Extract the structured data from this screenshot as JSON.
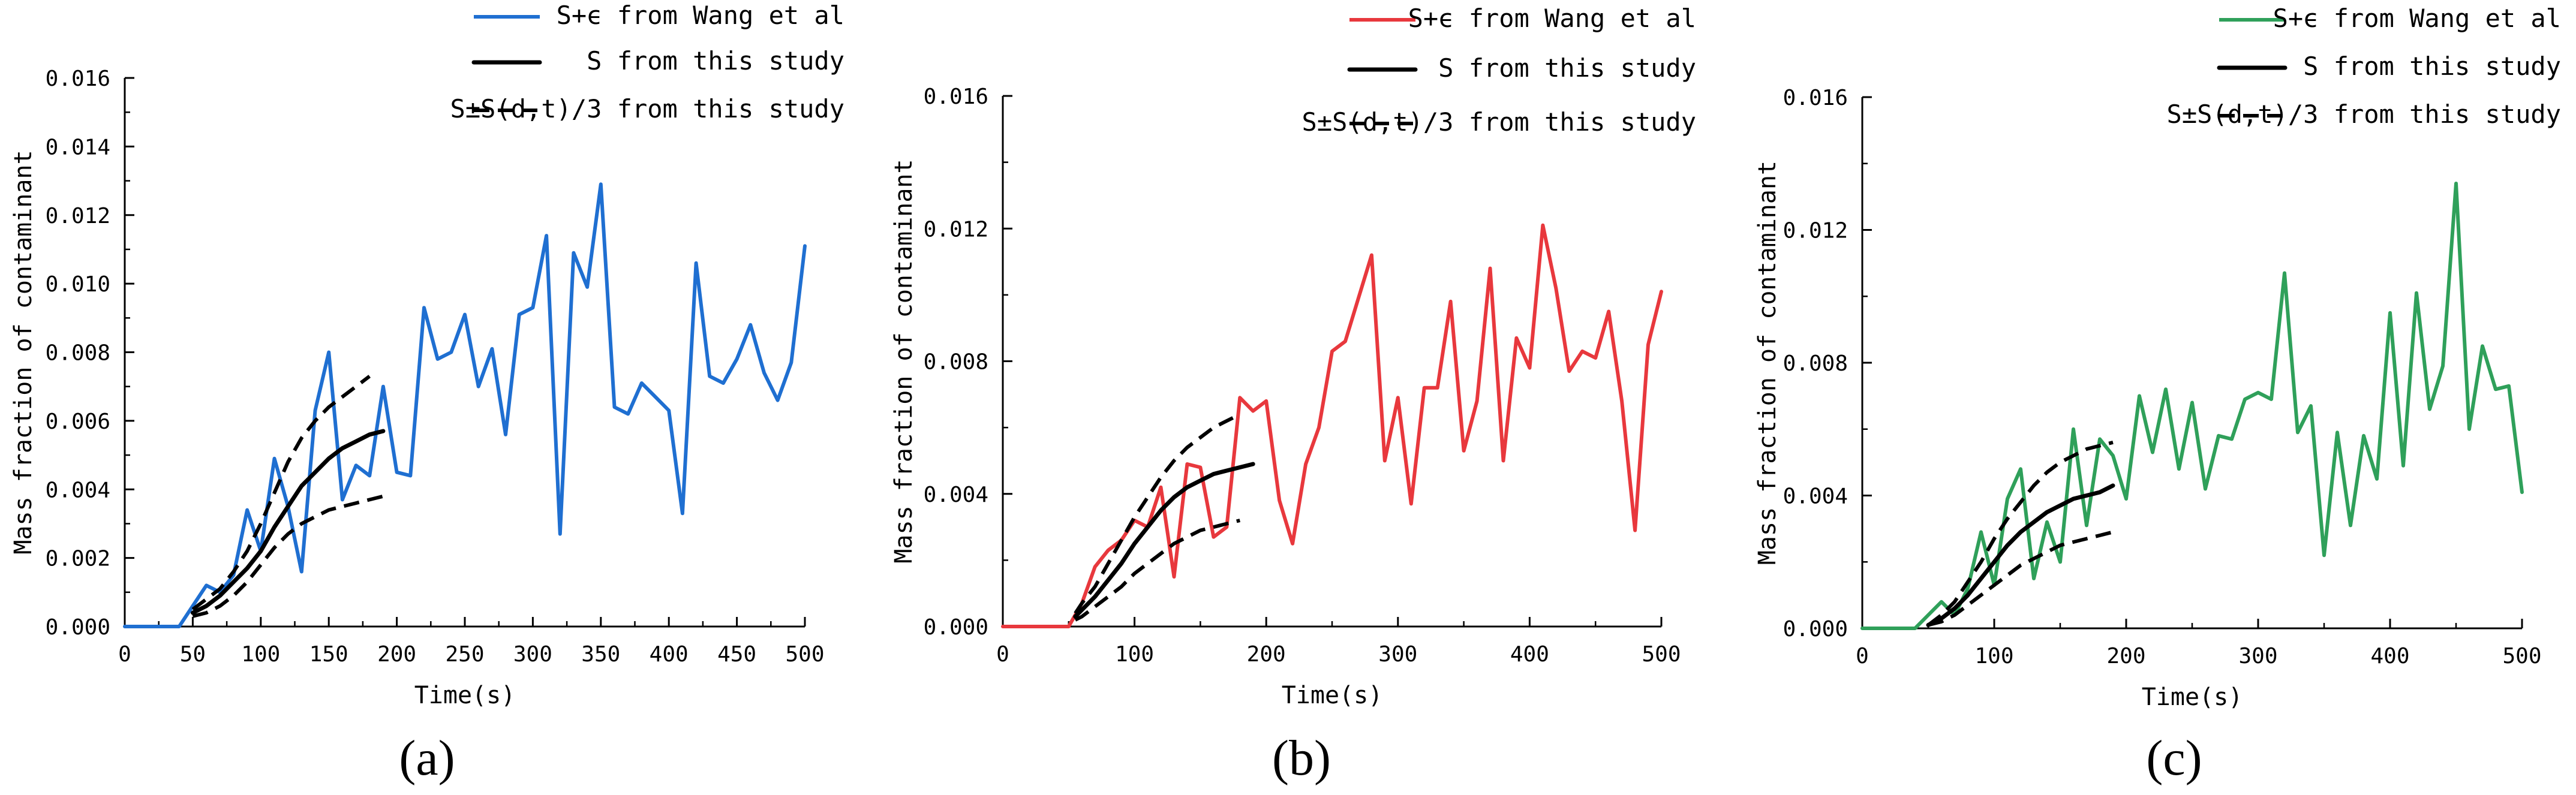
{
  "figure": {
    "panel_labels": [
      "(a)",
      "(b)",
      "(c)"
    ]
  },
  "chart_data": [
    {
      "type": "line",
      "panel": "(a)",
      "xlabel": "Time(s)",
      "ylabel": "Mass fraction of contaminant",
      "xlim": [
        0,
        500
      ],
      "ylim": [
        0,
        0.016
      ],
      "xticks": [
        0,
        50,
        100,
        150,
        200,
        250,
        300,
        350,
        400,
        450,
        500
      ],
      "yticks": [
        0.0,
        0.002,
        0.004,
        0.006,
        0.008,
        0.01,
        0.012,
        0.014,
        0.016
      ],
      "x_tick_labels": [
        "0",
        "50",
        "100",
        "150",
        "200",
        "250",
        "300",
        "350",
        "400",
        "450",
        "500"
      ],
      "y_tick_labels": [
        "0.000",
        "0.002",
        "0.004",
        "0.006",
        "0.008",
        "0.010",
        "0.012",
        "0.014",
        "0.016"
      ],
      "minor_y": true,
      "legend": [
        "S+ϵ from Wang et al",
        "S from this study",
        "S±S(d,t)/3 from this study"
      ],
      "colors": {
        "wang": "#1f6fd1"
      },
      "series": [
        {
          "name": "S+ϵ from Wang et al",
          "style": "wang",
          "x": [
            0,
            40,
            50,
            60,
            70,
            80,
            90,
            100,
            110,
            120,
            130,
            140,
            150,
            160,
            170,
            180,
            190,
            200,
            210,
            220,
            230,
            240,
            250,
            260,
            270,
            280,
            290,
            300,
            310,
            320,
            330,
            340,
            350,
            360,
            370,
            380,
            390,
            400,
            410,
            420,
            430,
            440,
            450,
            460,
            470,
            480,
            490,
            500
          ],
          "y": [
            0,
            0,
            0.0006,
            0.0012,
            0.001,
            0.0015,
            0.0034,
            0.0022,
            0.0049,
            0.0035,
            0.0016,
            0.0063,
            0.008,
            0.0037,
            0.0047,
            0.0044,
            0.007,
            0.0045,
            0.0044,
            0.0093,
            0.0078,
            0.008,
            0.0091,
            0.007,
            0.0081,
            0.0056,
            0.0091,
            0.0093,
            0.0114,
            0.0027,
            0.0109,
            0.0099,
            0.0129,
            0.0064,
            0.0062,
            0.0071,
            0.0067,
            0.0063,
            0.0033,
            0.0106,
            0.0073,
            0.0071,
            0.0078,
            0.0088,
            0.0074,
            0.0066,
            0.0077,
            0.0111
          ]
        },
        {
          "name": "S from this study",
          "style": "fit",
          "x": [
            50,
            60,
            70,
            80,
            90,
            100,
            110,
            120,
            130,
            140,
            150,
            160,
            170,
            180,
            190
          ],
          "y": [
            0.0004,
            0.0006,
            0.0009,
            0.0013,
            0.0017,
            0.0022,
            0.0029,
            0.0035,
            0.0041,
            0.0045,
            0.0049,
            0.0052,
            0.0054,
            0.0056,
            0.0057
          ]
        },
        {
          "name": "S+S(d,t)/3",
          "style": "band",
          "x": [
            50,
            60,
            70,
            80,
            90,
            100,
            110,
            120,
            130,
            140,
            150,
            160,
            170,
            180
          ],
          "y": [
            0.0005,
            0.0008,
            0.0011,
            0.0016,
            0.0022,
            0.003,
            0.0039,
            0.0048,
            0.0055,
            0.006,
            0.0064,
            0.0067,
            0.007,
            0.0073
          ]
        },
        {
          "name": "S-S(d,t)/3",
          "style": "band",
          "x": [
            50,
            60,
            70,
            80,
            90,
            100,
            110,
            120,
            130,
            140,
            150,
            160,
            170,
            180,
            190
          ],
          "y": [
            0.0003,
            0.0004,
            0.0006,
            0.0009,
            0.0013,
            0.0018,
            0.0023,
            0.0027,
            0.003,
            0.0032,
            0.0034,
            0.0035,
            0.0036,
            0.0037,
            0.0038
          ]
        }
      ]
    },
    {
      "type": "line",
      "panel": "(b)",
      "xlabel": "Time(s)",
      "ylabel": "Mass fraction of contaminant",
      "xlim": [
        0,
        500
      ],
      "ylim": [
        0,
        0.016
      ],
      "xticks": [
        0,
        100,
        200,
        300,
        400,
        500
      ],
      "yticks": [
        0.0,
        0.004,
        0.008,
        0.012,
        0.016
      ],
      "x_tick_labels": [
        "0",
        "100",
        "200",
        "300",
        "400",
        "500"
      ],
      "y_tick_labels": [
        "0.000",
        "0.004",
        "0.008",
        "0.012",
        "0.016"
      ],
      "minor_y": false,
      "legend": [
        "S+ϵ from Wang et al",
        "S from this study",
        "S±S(d,t)/3 from this study"
      ],
      "colors": {
        "wang": "#e8383d"
      },
      "series": [
        {
          "name": "S+ϵ from Wang et al",
          "style": "wang",
          "x": [
            0,
            50,
            60,
            70,
            80,
            90,
            100,
            110,
            120,
            130,
            140,
            150,
            160,
            170,
            180,
            190,
            200,
            210,
            220,
            230,
            240,
            250,
            260,
            270,
            280,
            290,
            300,
            310,
            320,
            330,
            340,
            350,
            360,
            370,
            380,
            390,
            400,
            410,
            420,
            430,
            440,
            450,
            460,
            470,
            480,
            490,
            500
          ],
          "y": [
            0,
            0,
            0.0007,
            0.0018,
            0.0023,
            0.0026,
            0.0032,
            0.003,
            0.0042,
            0.0015,
            0.0049,
            0.0048,
            0.0027,
            0.003,
            0.0069,
            0.0065,
            0.0068,
            0.0038,
            0.0025,
            0.0049,
            0.006,
            0.0083,
            0.0086,
            0.0099,
            0.0112,
            0.005,
            0.0069,
            0.0037,
            0.0072,
            0.0072,
            0.0098,
            0.0053,
            0.0068,
            0.0108,
            0.005,
            0.0087,
            0.0078,
            0.0121,
            0.0102,
            0.0077,
            0.0083,
            0.0081,
            0.0095,
            0.0068,
            0.0029,
            0.0085,
            0.0101
          ]
        },
        {
          "name": "S from this study",
          "style": "fit",
          "x": [
            55,
            60,
            70,
            80,
            90,
            100,
            110,
            120,
            130,
            140,
            150,
            160,
            170,
            180,
            190
          ],
          "y": [
            0.0003,
            0.0005,
            0.0009,
            0.0014,
            0.0019,
            0.0025,
            0.003,
            0.0035,
            0.0039,
            0.0042,
            0.0044,
            0.0046,
            0.0047,
            0.0048,
            0.0049
          ]
        },
        {
          "name": "S+S(d,t)/3",
          "style": "band",
          "x": [
            55,
            60,
            70,
            80,
            90,
            100,
            110,
            120,
            130,
            140,
            150,
            160,
            170,
            180
          ],
          "y": [
            0.0004,
            0.0007,
            0.0012,
            0.0019,
            0.0026,
            0.0033,
            0.0039,
            0.0045,
            0.005,
            0.0054,
            0.0057,
            0.006,
            0.0062,
            0.0064
          ]
        },
        {
          "name": "S-S(d,t)/3",
          "style": "band",
          "x": [
            55,
            60,
            70,
            80,
            90,
            100,
            110,
            120,
            130,
            140,
            150,
            160,
            170,
            180
          ],
          "y": [
            0.0002,
            0.0003,
            0.0006,
            0.0009,
            0.0012,
            0.0016,
            0.0019,
            0.0022,
            0.0025,
            0.0027,
            0.0029,
            0.003,
            0.0031,
            0.0032
          ]
        }
      ]
    },
    {
      "type": "line",
      "panel": "(c)",
      "xlabel": "Time(s)",
      "ylabel": "Mass fraction of contaminant",
      "xlim": [
        0,
        500
      ],
      "ylim": [
        0,
        0.016
      ],
      "xticks": [
        0,
        100,
        200,
        300,
        400,
        500
      ],
      "yticks": [
        0.0,
        0.004,
        0.008,
        0.012,
        0.016
      ],
      "x_tick_labels": [
        "0",
        "100",
        "200",
        "300",
        "400",
        "500"
      ],
      "y_tick_labels": [
        "0.000",
        "0.004",
        "0.008",
        "0.012",
        "0.016"
      ],
      "minor_y": false,
      "legend": [
        "S+ϵ from Wang et al",
        "S from this study",
        "S±S(d,t)/3 from this study"
      ],
      "colors": {
        "wang": "#2fa05a"
      },
      "series": [
        {
          "name": "S+ϵ from Wang et al",
          "style": "wang",
          "x": [
            0,
            30,
            40,
            50,
            60,
            70,
            80,
            90,
            100,
            110,
            120,
            130,
            140,
            150,
            160,
            170,
            180,
            190,
            200,
            210,
            220,
            230,
            240,
            250,
            260,
            270,
            280,
            290,
            300,
            310,
            320,
            330,
            340,
            350,
            360,
            370,
            380,
            390,
            400,
            410,
            420,
            430,
            440,
            450,
            460,
            470,
            480,
            490,
            500
          ],
          "y": [
            0,
            0,
            0,
            0.0004,
            0.0008,
            0.0004,
            0.0012,
            0.0029,
            0.0013,
            0.0039,
            0.0048,
            0.0015,
            0.0032,
            0.002,
            0.006,
            0.0031,
            0.0057,
            0.0052,
            0.0039,
            0.007,
            0.0053,
            0.0072,
            0.0048,
            0.0068,
            0.0042,
            0.0058,
            0.0057,
            0.0069,
            0.0071,
            0.0069,
            0.0107,
            0.0059,
            0.0067,
            0.0022,
            0.0059,
            0.0031,
            0.0058,
            0.0045,
            0.0095,
            0.0049,
            0.0101,
            0.0066,
            0.0079,
            0.0134,
            0.006,
            0.0085,
            0.0072,
            0.0073,
            0.0041
          ]
        },
        {
          "name": "S from this study",
          "style": "fit",
          "x": [
            50,
            60,
            70,
            80,
            90,
            100,
            110,
            120,
            130,
            140,
            150,
            160,
            170,
            180,
            190
          ],
          "y": [
            0.0001,
            0.0003,
            0.0006,
            0.001,
            0.0015,
            0.002,
            0.0025,
            0.0029,
            0.0032,
            0.0035,
            0.0037,
            0.0039,
            0.004,
            0.0041,
            0.0043
          ]
        },
        {
          "name": "S+S(d,t)/3",
          "style": "band",
          "x": [
            50,
            60,
            70,
            80,
            90,
            100,
            110,
            120,
            130,
            140,
            150,
            160,
            170,
            180,
            190
          ],
          "y": [
            0.0001,
            0.0004,
            0.0008,
            0.0014,
            0.002,
            0.0027,
            0.0033,
            0.0038,
            0.0043,
            0.0047,
            0.005,
            0.0052,
            0.0054,
            0.0055,
            0.0056
          ]
        },
        {
          "name": "S-S(d,t)/3",
          "style": "band",
          "x": [
            50,
            60,
            70,
            80,
            90,
            100,
            110,
            120,
            130,
            140,
            150,
            160,
            170,
            180,
            190
          ],
          "y": [
            0.0001,
            0.0002,
            0.0004,
            0.0007,
            0.001,
            0.0013,
            0.0016,
            0.0019,
            0.0021,
            0.0023,
            0.0025,
            0.0026,
            0.0027,
            0.0028,
            0.0029
          ]
        }
      ]
    }
  ]
}
